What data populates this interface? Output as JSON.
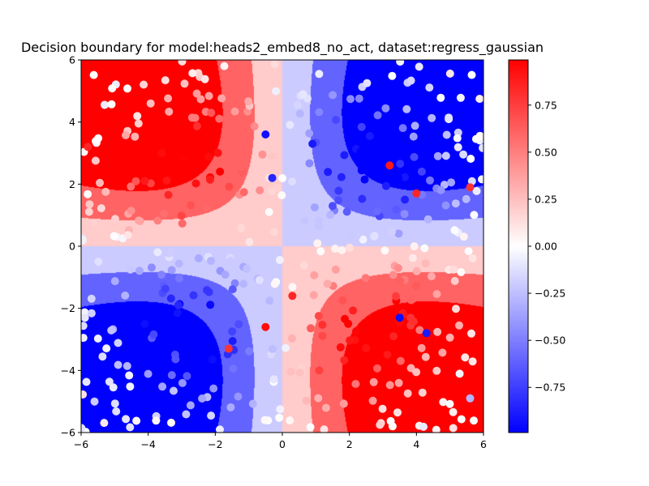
{
  "chart_data": {
    "type": "heatmap",
    "title": "Decision boundary for model:heads2_embed8_no_act, dataset:regress_gaussian",
    "xlabel": "",
    "ylabel": "",
    "xlim": [
      -6,
      6
    ],
    "ylim": [
      -6,
      6
    ],
    "x_ticks": [
      "−6",
      "−4",
      "−2",
      "0",
      "2",
      "4",
      "6"
    ],
    "y_ticks": [
      "−6",
      "−4",
      "−2",
      "0",
      "2",
      "4",
      "6"
    ],
    "grid": false,
    "colormap": "bwr",
    "colormap_colors": [
      "#0000ff",
      "#ffffff",
      "#ff0000"
    ],
    "colorbar": {
      "range": [
        -0.99,
        0.99
      ],
      "ticks": [
        "0.75",
        "0.50",
        "0.25",
        "0.00",
        "−0.25",
        "−0.50",
        "−0.75"
      ],
      "tick_values": [
        0.75,
        0.5,
        0.25,
        0.0,
        -0.25,
        -0.5,
        -0.75
      ],
      "placement": "right"
    },
    "contour_levels": [
      -0.75,
      -0.5,
      -0.25,
      0,
      0.25,
      0.5,
      0.75
    ],
    "contour_extremes": [
      -0.55,
      0.55
    ],
    "points_sample": [
      {
        "x": -0.5,
        "y": 3.6,
        "v": -0.95
      },
      {
        "x": 0.9,
        "y": 3.3,
        "v": -0.9
      },
      {
        "x": -0.3,
        "y": 2.2,
        "v": -0.85
      },
      {
        "x": 1.5,
        "y": 1.3,
        "v": -0.7
      },
      {
        "x": -3.6,
        "y": 3.0,
        "v": 0.95
      },
      {
        "x": -4.1,
        "y": 2.1,
        "v": 0.9
      },
      {
        "x": 3.2,
        "y": 2.6,
        "v": 0.9
      },
      {
        "x": 4.0,
        "y": 1.7,
        "v": 0.85
      },
      {
        "x": -4.1,
        "y": -2.5,
        "v": -0.95
      },
      {
        "x": -3.1,
        "y": -1.9,
        "v": -0.85
      },
      {
        "x": 3.5,
        "y": -2.3,
        "v": -0.95
      },
      {
        "x": 4.3,
        "y": -2.8,
        "v": -0.9
      },
      {
        "x": -0.5,
        "y": -2.6,
        "v": 0.95
      },
      {
        "x": 0.3,
        "y": -1.6,
        "v": 0.85
      },
      {
        "x": -1.6,
        "y": -3.3,
        "v": 0.8
      },
      {
        "x": 1.1,
        "y": -4.0,
        "v": 0.75
      },
      {
        "x": -5.8,
        "y": 3.2,
        "v": 0.85
      },
      {
        "x": 5.6,
        "y": 1.9,
        "v": 0.8
      },
      {
        "x": 5.6,
        "y": -4.9,
        "v": -0.3
      },
      {
        "x": -5.6,
        "y": -5.0,
        "v": -0.2
      }
    ]
  }
}
